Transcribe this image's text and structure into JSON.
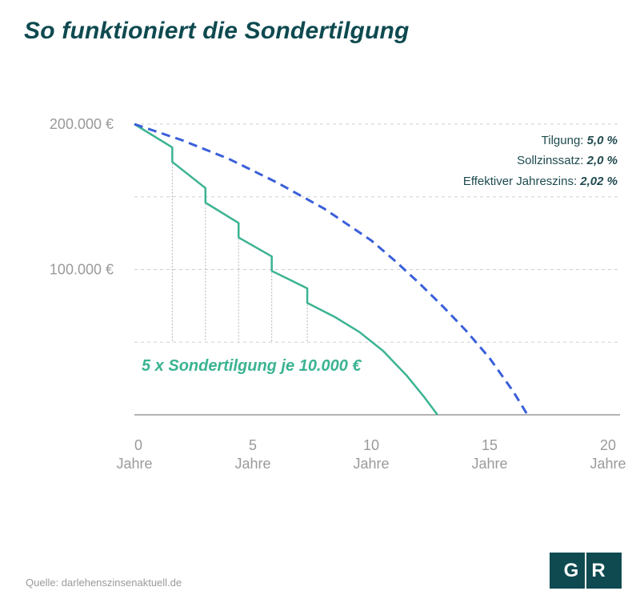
{
  "title": "So funktioniert die Sondertilgung",
  "source": "Quelle: darlehenszinsenaktuell.de",
  "logo": {
    "left": "G",
    "right": "R"
  },
  "colors": {
    "title": "#0e4a50",
    "with_sondertilgung": "#3bb392",
    "without_sondertilgung": "#3a5fd9",
    "grid": "#cfcfcf",
    "axis_text": "#9a9a9a",
    "logo_bg": "#0e4a50"
  },
  "annotations": {
    "tilgung_label": "Tilgung:",
    "tilgung_value": "5,0 %",
    "sollzins_label": "Sollzinssatz:",
    "sollzins_value": "2,0 %",
    "effektiv_label": "Effektiver Jahreszins:",
    "effektiv_value": "2,02 %",
    "sondertilgung_label": "5 x Sondertilgung je 10.000 €"
  },
  "chart_data": {
    "type": "line",
    "x_unit_label": "Jahre",
    "xlim": [
      0,
      20
    ],
    "ylim": [
      0,
      200000
    ],
    "x_ticks": [
      0,
      5,
      10,
      15,
      20
    ],
    "x_tick_labels": [
      "0",
      "5",
      "10",
      "15",
      "20"
    ],
    "y_ticks": [
      100000,
      200000
    ],
    "y_tick_labels": [
      "100.000 €",
      "200.000 €"
    ],
    "y_gridlines": [
      50000,
      100000,
      150000,
      200000
    ],
    "grid": true,
    "series": [
      {
        "style": "solid",
        "x": [
          0,
          1.6,
          1.6,
          3.0,
          3.0,
          4.4,
          4.4,
          5.8,
          5.8,
          7.3,
          7.3,
          8.5,
          9.5,
          10.5,
          11.5,
          12.2,
          12.8
        ],
        "y": [
          200000,
          184000,
          174000,
          156000,
          146000,
          132000,
          122000,
          109000,
          99000,
          87000,
          77000,
          67000,
          57000,
          44000,
          27000,
          13000,
          0
        ]
      },
      {
        "style": "dashed",
        "x": [
          0,
          2,
          4,
          6,
          8,
          10,
          11,
          12,
          13,
          14,
          15,
          16,
          16.6
        ],
        "y": [
          200000,
          189000,
          176000,
          160000,
          142000,
          120000,
          106000,
          91000,
          75000,
          58000,
          39000,
          16000,
          0
        ]
      }
    ],
    "sondertilgung_markers": [
      1.6,
      3.0,
      4.4,
      5.8,
      7.3
    ],
    "marker_line_bottom": 50000
  }
}
